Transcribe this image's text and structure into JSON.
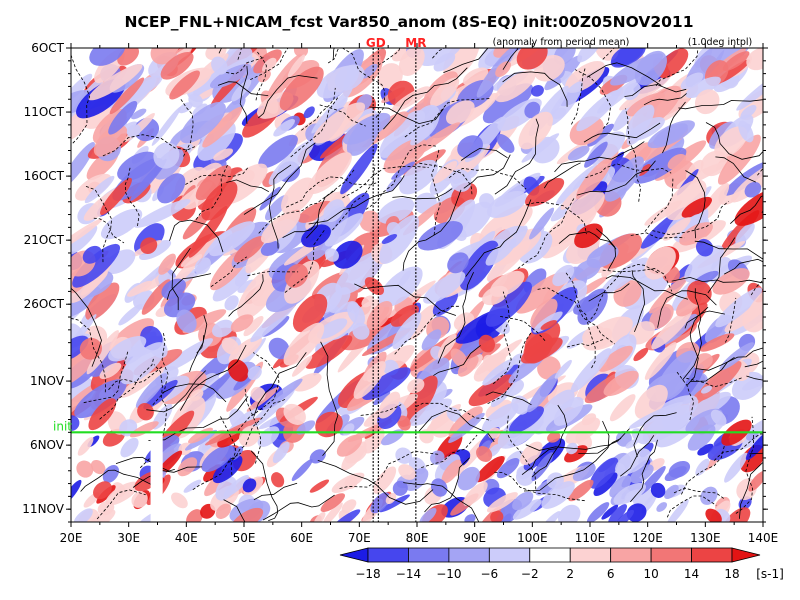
{
  "chart_data": {
    "type": "heatmap",
    "title": "NCEP_FNL+NICAM_fcst Var850_anom (8S-EQ) init:00Z05NOV2011",
    "subtitle_left": "(anomaly from period mean)",
    "subtitle_right": "(1.0deg intpl)",
    "x": {
      "range": [
        20,
        140
      ],
      "unit": "E",
      "ticks": [
        20,
        30,
        40,
        50,
        60,
        70,
        80,
        90,
        100,
        110,
        120,
        130,
        140
      ],
      "tick_labels": [
        "20E",
        "30E",
        "40E",
        "50E",
        "60E",
        "70E",
        "80E",
        "90E",
        "100E",
        "110E",
        "120E",
        "130E",
        "140E"
      ]
    },
    "y": {
      "range": [
        "2011-10-06",
        "2011-11-12"
      ],
      "direction": "top-to-bottom",
      "ticks": [
        "2011-10-06",
        "2011-10-11",
        "2011-10-16",
        "2011-10-21",
        "2011-10-26",
        "2011-11-01",
        "2011-11-06",
        "2011-11-11"
      ],
      "tick_labels": [
        "6OCT",
        "11OCT",
        "16OCT",
        "21OCT",
        "26OCT",
        "1NOV",
        "6NOV",
        "11NOV"
      ]
    },
    "init_line": {
      "label": "init",
      "date": "2011-11-05",
      "color": "#22dd22"
    },
    "site_lines": [
      {
        "label": "GD",
        "lon": [
          72.4,
          73.3
        ],
        "color": "#ff2222"
      },
      {
        "label": "MR",
        "lon": [
          79.8
        ],
        "color": "#ff2222"
      }
    ],
    "colorbar": {
      "levels": [
        -18,
        -14,
        -10,
        -6,
        -2,
        2,
        6,
        10,
        14,
        18
      ],
      "level_labels": [
        "−18",
        "−14",
        "−10",
        "−6",
        "−2",
        "2",
        "6",
        "10",
        "14",
        "18"
      ],
      "colors": [
        "#1c1ce6",
        "#4646ee",
        "#7a7af0",
        "#a4a4f4",
        "#ccccfa",
        "#ffffff",
        "#fcd2d2",
        "#f8a4a4",
        "#f27676",
        "#ec4444",
        "#e31414"
      ],
      "unit": "[s-1]"
    },
    "missing_band": {
      "lon": [
        33.8,
        35.9
      ],
      "from_date": "2011-11-05"
    }
  }
}
